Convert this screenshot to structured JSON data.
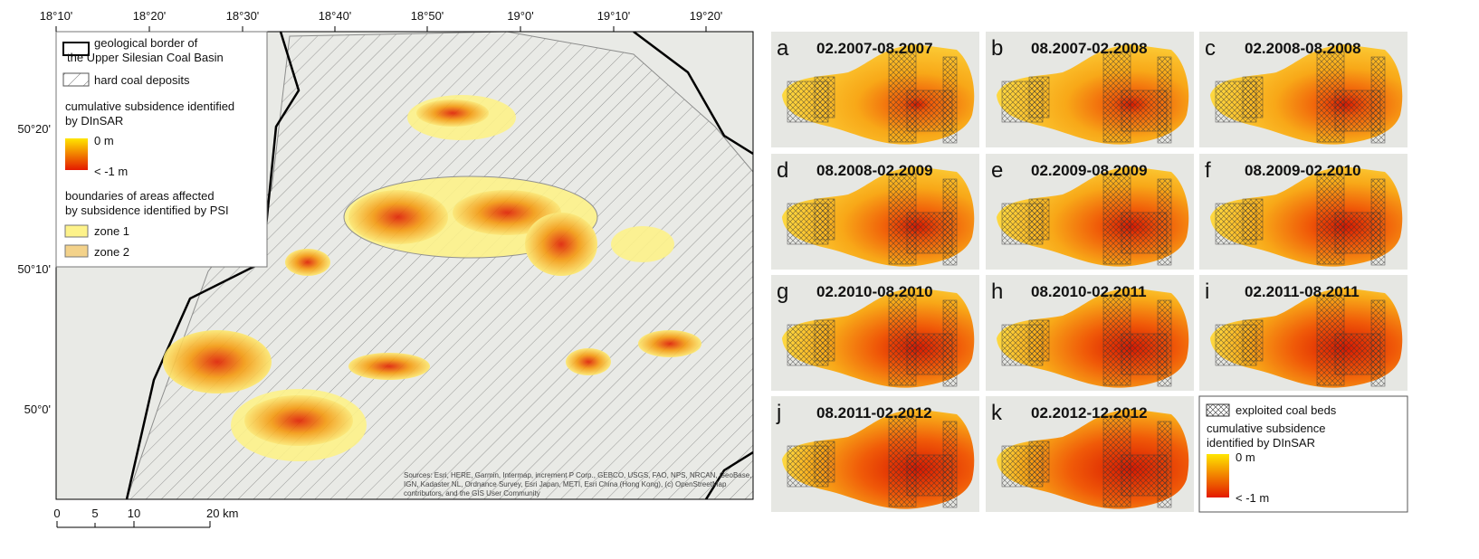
{
  "map": {
    "lon_labels": [
      "18°10'",
      "18°20'",
      "18°30'",
      "18°40'",
      "18°50'",
      "19°0'",
      "19°10'",
      "19°20'"
    ],
    "lat_labels": [
      "50°20'",
      "50°10'",
      "50°0'"
    ],
    "scale_labels": [
      "0",
      "5",
      "10",
      "20 km"
    ],
    "legend": {
      "border_line1": "geological border of",
      "border_line2": "the Upper Silesian Coal Basin",
      "deposits": "hard coal deposits",
      "subsidence_line1": "cumulative subsidence identified",
      "subsidence_line2": "by DInSAR",
      "max": "0 m",
      "min": "< -1 m",
      "psi_line1": "boundaries of areas affected",
      "psi_line2": "by subsidence identified by PSI",
      "zone1": "zone 1",
      "zone2": "zone 2"
    },
    "attribution_line1": "Sources: Esri, HERE, Garmin, Intermap, increment P Corp., GEBCO, USGS, FAO, NPS, NRCAN, GeoBase,",
    "attribution_line2": "IGN, Kadaster NL, Ordnance Survey, Esri Japan, METI, Esri China (Hong Kong), (c) OpenStreetMap",
    "attribution_line3": "contributors, and the GIS User Community"
  },
  "panels": [
    {
      "letter": "a",
      "period": "02.2007-08.2007"
    },
    {
      "letter": "b",
      "period": "08.2007-02.2008"
    },
    {
      "letter": "c",
      "period": "02.2008-08.2008"
    },
    {
      "letter": "d",
      "period": "08.2008-02.2009"
    },
    {
      "letter": "e",
      "period": "02.2009-08.2009"
    },
    {
      "letter": "f",
      "period": "08.2009-02.2010"
    },
    {
      "letter": "g",
      "period": "02.2010-08.2010"
    },
    {
      "letter": "h",
      "period": "08.2010-02.2011"
    },
    {
      "letter": "i",
      "period": "02.2011-08.2011"
    },
    {
      "letter": "j",
      "period": "08.2011-02.2012"
    },
    {
      "letter": "k",
      "period": "02.2012-12.2012"
    }
  ],
  "panel_legend": {
    "coal_beds": "exploited coal beds",
    "subsidence_line1": "cumulative subsidence",
    "subsidence_line2": "identified by DInSAR",
    "max": "0 m",
    "min": "< -1 m"
  }
}
